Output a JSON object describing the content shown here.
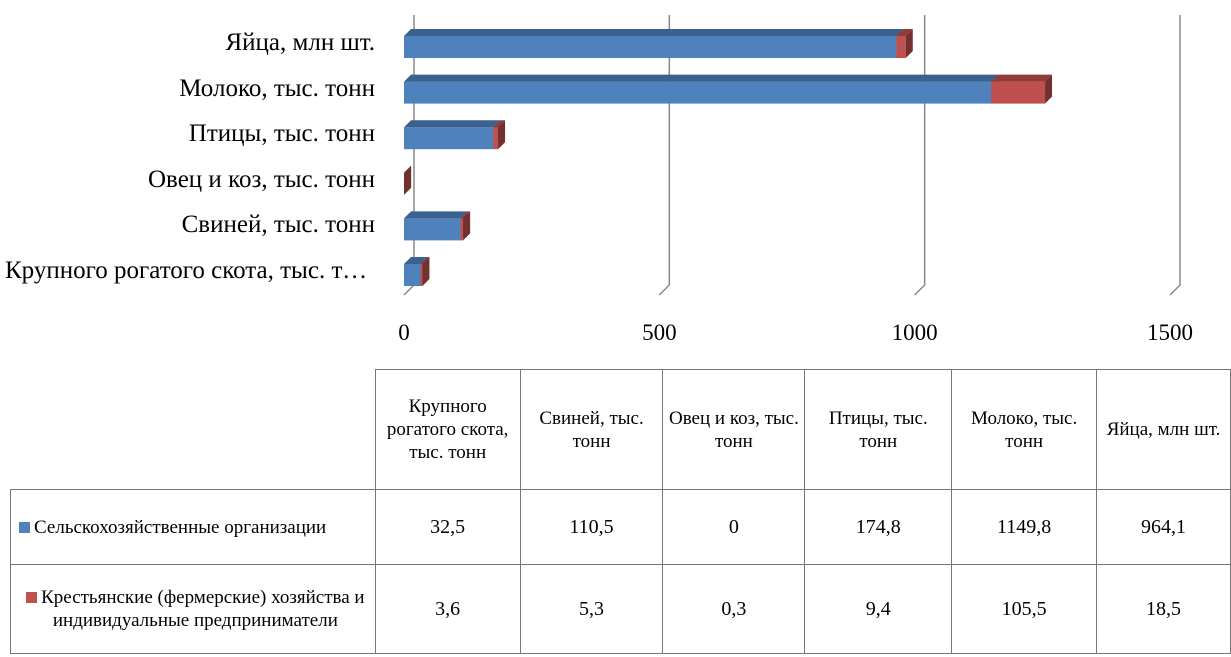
{
  "chart_data": {
    "type": "bar",
    "orientation": "horizontal",
    "stacked": true,
    "categories": [
      "Крупного рогатого скота, тыс. тонн",
      "Свиней, тыс. тонн",
      "Овец и коз, тыс. тонн",
      "Птицы, тыс. тонн",
      "Молоко, тыс. тонн",
      "Яйца, млн шт."
    ],
    "series": [
      {
        "name": "Сельскохозяйственные организации",
        "color": "#4f81bd",
        "values": [
          32.5,
          110.5,
          0,
          174.8,
          1149.8,
          964.1
        ],
        "value_labels": [
          "32,5",
          "110,5",
          "0",
          "174,8",
          "1149,8",
          "964,1"
        ]
      },
      {
        "name": "Крестьянские (фермерские) хозяйства и индивидуальные предприниматели",
        "color": "#c0504d",
        "values": [
          3.6,
          5.3,
          0.3,
          9.4,
          105.5,
          18.5
        ],
        "value_labels": [
          "3,6",
          "5,3",
          "0,3",
          "9,4",
          "105,5",
          "18,5"
        ]
      }
    ],
    "xlim": [
      0,
      1500
    ],
    "xticks": [
      0,
      500,
      1000,
      1500
    ],
    "grid": true
  }
}
